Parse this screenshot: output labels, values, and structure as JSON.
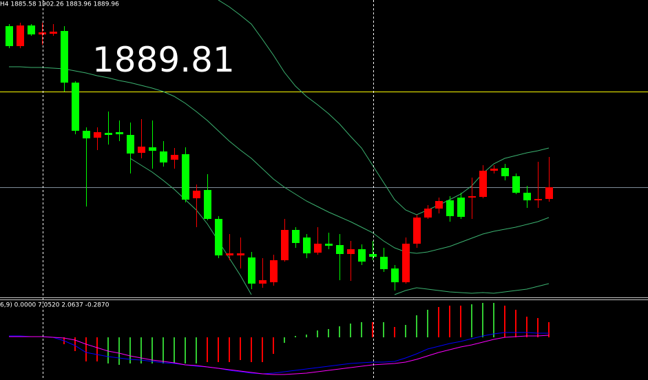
{
  "chart_data": [
    {
      "type": "candlestick",
      "title": "H4  1885.58 1902.26 1883.96 1889.96",
      "annotation": "1889.81",
      "open": [
        1948.5,
        1941.25,
        1948.75,
        1945.5,
        1945.75,
        1946.75,
        1928,
        1910.5,
        1908,
        1909.75,
        1910,
        1909,
        1902.5,
        1904.5,
        1903,
        1900,
        1902,
        1886,
        1889,
        1878.5,
        1865.25,
        1865.25,
        1864.5,
        1855,
        1855.5,
        1863.5,
        1874.5,
        1871.75,
        1866.25,
        1869.5,
        1869,
        1865.75,
        1867.5,
        1865.75,
        1864.75,
        1860.5,
        1855.5,
        1869.5,
        1879,
        1882.25,
        1885.25,
        1886.25,
        1886.25,
        1886.5,
        1896,
        1897,
        1894,
        1888,
        1885.25,
        1885.75
      ],
      "high": [
        1949.25,
        1949.75,
        1949.25,
        1949.75,
        1949.25,
        1948.5,
        1928.5,
        1911.75,
        1911.75,
        1917.5,
        1914.25,
        1913.5,
        1914.75,
        1914.25,
        1906.75,
        1904.25,
        1904.5,
        1891,
        1894.75,
        1879.5,
        1873,
        1871.75,
        1866.5,
        1864.25,
        1865.5,
        1878.5,
        1875.5,
        1873,
        1875.5,
        1873.5,
        1873,
        1870.5,
        1869.25,
        1870.5,
        1868,
        1861.75,
        1871.75,
        1880,
        1883.5,
        1886.25,
        1886.75,
        1888,
        1893.5,
        1898,
        1898,
        1898.5,
        1895,
        1890.5,
        1899.25,
        1901
      ],
      "low": [
        1940.5,
        1940.5,
        1945,
        1941.75,
        1945,
        1924.75,
        1909.25,
        1883,
        1903.5,
        1905.5,
        1906.75,
        1895,
        1900.5,
        1896.75,
        1897.5,
        1896.75,
        1884.5,
        1875.5,
        1878,
        1864.25,
        1863.5,
        1860.5,
        1853,
        1853.5,
        1854.25,
        1863,
        1868,
        1864.25,
        1865.5,
        1867.5,
        1856.25,
        1856,
        1861.75,
        1863.5,
        1859.25,
        1852.5,
        1855,
        1868,
        1878.5,
        1880.5,
        1877.5,
        1878.5,
        1878.5,
        1886,
        1895,
        1892.5,
        1887.5,
        1882.5,
        1882.5,
        1884.75
      ],
      "close": [
        1941.25,
        1948.75,
        1945.5,
        1946.25,
        1946.5,
        1928,
        1910.5,
        1907.75,
        1910,
        1909,
        1909.25,
        1902.25,
        1904.75,
        1903.25,
        1899,
        1901.75,
        1885.5,
        1888.75,
        1878.5,
        1865.25,
        1866,
        1866,
        1855,
        1856.25,
        1863.5,
        1874.5,
        1869.75,
        1866,
        1869.5,
        1868.75,
        1865.75,
        1867.5,
        1863,
        1864.75,
        1860.25,
        1855.5,
        1869.5,
        1879,
        1882.25,
        1885,
        1879.5,
        1879.25,
        1886.75,
        1896,
        1896.75,
        1894,
        1888,
        1885.25,
        1885.75,
        1890
      ],
      "up_color": "#ff0000",
      "down_color": "#00ff00",
      "series": [
        {
          "color": "#3cb371",
          "values": [
            null,
            null,
            null,
            null,
            null,
            null,
            null,
            null,
            null,
            null,
            null,
            null,
            null,
            null,
            null,
            null,
            null,
            null,
            null,
            1958,
            1955.5,
            1952.5,
            1949.25,
            1943.75,
            1938,
            1931.75,
            1926.75,
            1923,
            1920,
            1916.75,
            1913,
            1908.5,
            1904.25,
            1898,
            1891.75,
            1885.5,
            1881.75,
            1880,
            1881.75,
            1883.5,
            1885.5,
            1887.5,
            1890.5,
            1895,
            1898.5,
            1900.5,
            1901.5,
            1902.5,
            1903.25,
            1904.25
          ]
        },
        {
          "color": "#3cb371",
          "values": [
            1933.75,
            1933.75,
            1933.5,
            1933.5,
            1933.25,
            1933,
            1932.25,
            1931.5,
            1930.5,
            1929.75,
            1928.75,
            1928,
            1927,
            1926,
            1924.75,
            1923,
            1920.5,
            1917.5,
            1914.25,
            1910.5,
            1906.75,
            1903.5,
            1900.5,
            1896.75,
            1893,
            1890,
            1887.5,
            1885,
            1883,
            1881,
            1879.25,
            1877.5,
            1875.5,
            1873.5,
            1870.5,
            1868,
            1866.5,
            1866,
            1866.5,
            1867.5,
            1868.5,
            1870,
            1871.5,
            1873,
            1874,
            1874.75,
            1875.5,
            1876.5,
            1877.5,
            1879
          ]
        },
        {
          "color": "#3cb371",
          "values": [
            null,
            null,
            null,
            null,
            null,
            null,
            null,
            null,
            null,
            null,
            null,
            1900.5,
            1898,
            1895.5,
            1892.5,
            1889.25,
            1885.5,
            1881.75,
            1876.75,
            1870.5,
            1864.25,
            1858,
            1851,
            null,
            null,
            null,
            null,
            null,
            null,
            null,
            null,
            null,
            null,
            null,
            null,
            1851,
            1852.5,
            1853.5,
            1853,
            1852.5,
            1852,
            1851.75,
            1851.5,
            1851.75,
            1851.5,
            1852,
            1852.5,
            1853,
            1854,
            1855
          ]
        }
      ],
      "hlines": [
        {
          "value": 1924.75,
          "color": "#ffff00"
        },
        {
          "value": 1890,
          "color": "#7f8c99"
        }
      ],
      "ylim": [
        1850,
        1958
      ]
    },
    {
      "type": "macd",
      "title": "6,9) 0.0000 7.0520 2.0637 -0.2870",
      "values": [
        0,
        0,
        0,
        0,
        0,
        -2,
        -4,
        -7,
        -7,
        -7.6,
        -8,
        -7.6,
        -7.6,
        -7.6,
        -7.6,
        -7.6,
        -7.6,
        -7.6,
        -7.2,
        -7.2,
        -7.2,
        -6.6,
        -7.2,
        -7.2,
        -4.8,
        -1.6,
        0.4,
        0.8,
        2,
        2.4,
        3.2,
        4,
        4.4,
        4.4,
        4.4,
        3,
        3.6,
        6.4,
        8,
        8.8,
        9.2,
        9.2,
        9.6,
        10,
        10,
        9.2,
        8,
        6,
        5.6,
        4.4
      ],
      "colors": [
        "#32cd32",
        "#32cd32",
        "#32cd32",
        "#32cd32",
        "#32cd32",
        "#ff0000",
        "#ff0000",
        "#ff0000",
        "#ff0000",
        "#32cd32",
        "#32cd32",
        "#32cd32",
        "#32cd32",
        "#32cd32",
        "#32cd32",
        "#32cd32",
        "#32cd32",
        "#32cd32",
        "#ff0000",
        "#ff0000",
        "#ff0000",
        "#ff0000",
        "#ff0000",
        "#ff0000",
        "#ff0000",
        "#32cd32",
        "#32cd32",
        "#32cd32",
        "#32cd32",
        "#32cd32",
        "#32cd32",
        "#32cd32",
        "#32cd32",
        "#ff0000",
        "#32cd32",
        "#ff0000",
        "#32cd32",
        "#32cd32",
        "#32cd32",
        "#ff0000",
        "#ff0000",
        "#ff0000",
        "#32cd32",
        "#32cd32",
        "#32cd32",
        "#ff0000",
        "#ff0000",
        "#ff0000",
        "#ff0000",
        "#ff0000"
      ],
      "series": [
        {
          "color": "#0000ff",
          "values": [
            0.4,
            0.4,
            0.2,
            0.2,
            0,
            -1,
            -2.4,
            -4.4,
            -5,
            -5.6,
            -6,
            -6.4,
            -6.6,
            -7,
            -7.4,
            -7.6,
            -8,
            -8.4,
            -8.6,
            -9,
            -9.6,
            -10,
            -10.4,
            -10.6,
            -10.4,
            -10,
            -9.6,
            -9.2,
            -8.8,
            -8.4,
            -8,
            -7.6,
            -7.4,
            -7.2,
            -7.2,
            -7,
            -6,
            -4.8,
            -3.4,
            -2.6,
            -1.8,
            -1.2,
            -0.4,
            0.4,
            1,
            1.4,
            1.4,
            1.4,
            1.2,
            1.2
          ]
        },
        {
          "color": "#ff00ff",
          "values": [
            0.2,
            0.2,
            0.2,
            0.2,
            0,
            -0.2,
            -0.8,
            -2,
            -3,
            -4,
            -4.6,
            -5.4,
            -6,
            -6.6,
            -7,
            -7.4,
            -8,
            -8.2,
            -8.6,
            -9,
            -9.4,
            -9.8,
            -10.2,
            -10.6,
            -10.8,
            -10.8,
            -10.6,
            -10.4,
            -10,
            -9.6,
            -9.2,
            -8.8,
            -8.4,
            -8,
            -7.8,
            -7.6,
            -7.2,
            -6.4,
            -5.4,
            -4.4,
            -3.6,
            -2.8,
            -2.2,
            -1.4,
            -0.6,
            0,
            0.2,
            0.4,
            0.4,
            0.6
          ]
        }
      ],
      "ylim": [
        -12.4,
        10.8
      ]
    }
  ]
}
